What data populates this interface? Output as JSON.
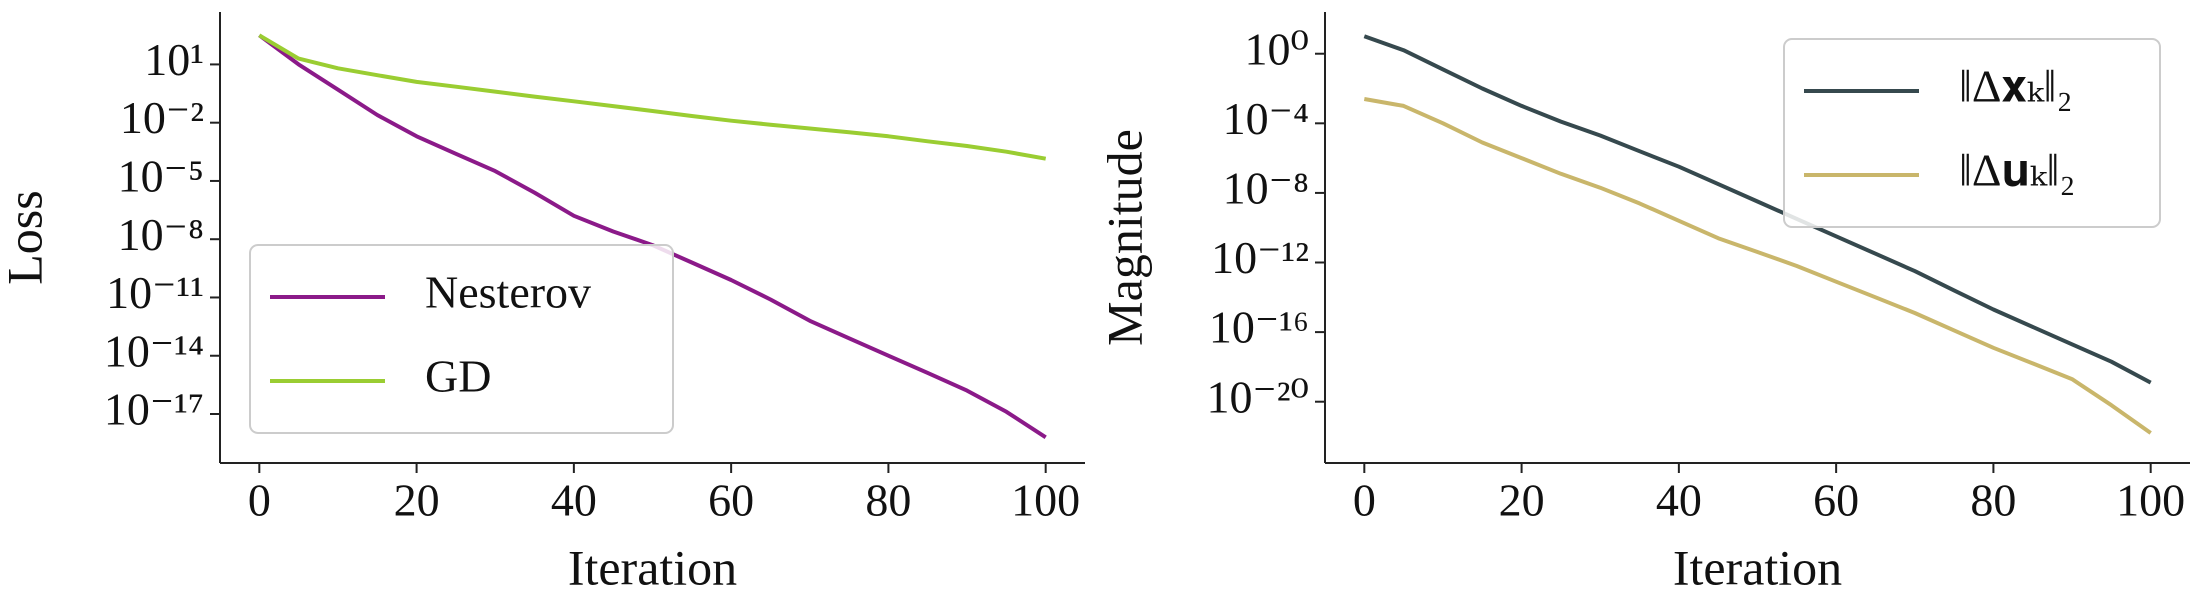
{
  "chart_data": [
    {
      "type": "line",
      "xlabel": "Iteration",
      "ylabel": "Loss",
      "log_y": true,
      "legend": "lower left",
      "x": [
        0,
        5,
        10,
        15,
        20,
        25,
        30,
        35,
        40,
        45,
        50,
        55,
        60,
        65,
        70,
        75,
        80,
        85,
        90,
        95,
        100
      ],
      "series": [
        {
          "name": "Nesterov",
          "color": "#8b1a89",
          "values": [
            316,
            10,
            0.5,
            0.025,
            0.002,
            0.00025,
            3.2e-05,
            2.5e-06,
            1.6e-07,
            2.5e-08,
            5e-09,
            6.3e-10,
            7.9e-11,
            7.9e-12,
            6.3e-13,
            7.9e-14,
            1e-14,
            1.3e-15,
            1.6e-16,
            1.3e-17,
            6.3e-19
          ]
        },
        {
          "name": "GD",
          "color": "#9acd32",
          "values": [
            316,
            20,
            6.3,
            2.8,
            1.26,
            0.71,
            0.4,
            0.22,
            0.126,
            0.071,
            0.04,
            0.022,
            0.0126,
            0.0079,
            0.005,
            0.0032,
            0.002,
            0.0011,
            0.00063,
            0.00032,
            0.00014
          ]
        }
      ],
      "xlim": [
        -5,
        105
      ],
      "xticks": [
        0,
        20,
        40,
        60,
        80,
        100
      ],
      "ylim": [
        5000,
        3e-20
      ],
      "yticks": [
        {
          "value": 10,
          "label": "10¹"
        },
        {
          "value": 0.01,
          "label": "10⁻²"
        },
        {
          "value": 1e-05,
          "label": "10⁻⁵"
        },
        {
          "value": 1e-08,
          "label": "10⁻⁸"
        },
        {
          "value": 1e-11,
          "label": "10⁻¹¹"
        },
        {
          "value": 1e-14,
          "label": "10⁻¹⁴"
        },
        {
          "value": 1e-17,
          "label": "10⁻¹⁷"
        }
      ]
    },
    {
      "type": "line",
      "xlabel": "Iteration",
      "ylabel": "Magnitude",
      "log_y": true,
      "legend": "upper right",
      "x": [
        0,
        5,
        10,
        15,
        20,
        25,
        30,
        35,
        40,
        45,
        50,
        55,
        60,
        65,
        70,
        75,
        80,
        85,
        90,
        95,
        100
      ],
      "series": [
        {
          "name": "‖Δ𝐱ₖ‖₂",
          "color": "#36494e",
          "values": [
            10,
            1.6,
            0.126,
            0.01,
            0.001,
            0.000126,
            2e-05,
            2.5e-06,
            3.2e-07,
            3.2e-08,
            3.2e-09,
            3.2e-10,
            3.2e-11,
            3.2e-12,
            3.2e-13,
            2.5e-14,
            2e-15,
            2e-16,
            2e-17,
            2e-18,
            1.26e-19
          ]
        },
        {
          "name": "‖Δ𝐮ₖ‖₂",
          "color": "#c9b66b",
          "values": [
            0.0025,
            0.001,
            0.0001,
            7.9e-06,
            1e-06,
            1.26e-07,
            2e-08,
            2.5e-09,
            2.5e-10,
            2.5e-11,
            4e-12,
            6.3e-13,
            7.9e-14,
            1e-14,
            1.26e-15,
            1.26e-16,
            1.26e-17,
            1.6e-18,
            2e-19,
            6.3e-21,
            1.6e-22
          ]
        }
      ],
      "xlim": [
        -5,
        105
      ],
      "xticks": [
        0,
        20,
        40,
        60,
        80,
        100
      ],
      "ylim": [
        250,
        3e-24
      ],
      "yticks": [
        {
          "value": 1,
          "label": "10⁰"
        },
        {
          "value": 0.0001,
          "label": "10⁻⁴"
        },
        {
          "value": 1e-08,
          "label": "10⁻⁸"
        },
        {
          "value": 1e-12,
          "label": "10⁻¹²"
        },
        {
          "value": 1e-16,
          "label": "10⁻¹⁶"
        },
        {
          "value": 1e-20,
          "label": "10⁻²⁰"
        }
      ]
    }
  ]
}
